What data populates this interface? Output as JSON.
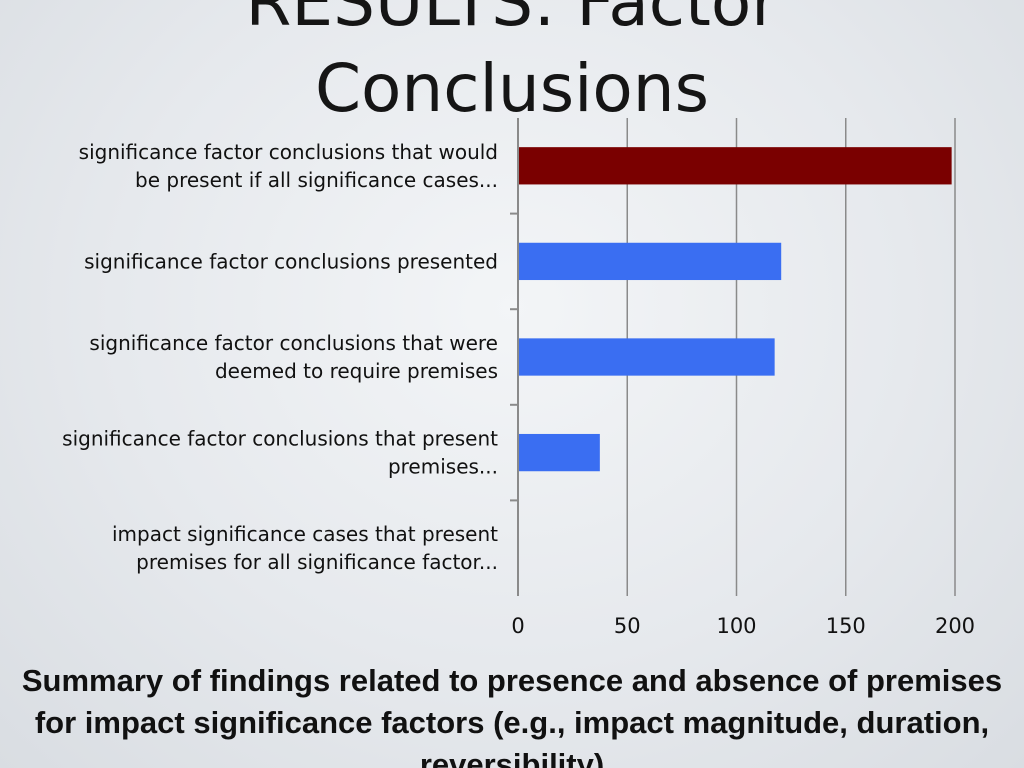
{
  "title_lines": [
    "RESULTS: Factor",
    "Conclusions"
  ],
  "caption": "Summary of findings related to presence and absence of premises for impact significance factors (e.g., impact magnitude, duration, reversibility)",
  "colors": {
    "highlight_bar": "#7a0000",
    "bar": "#3a6ef2",
    "grid": "#8a8a8a"
  },
  "chart_data": {
    "type": "bar",
    "orientation": "horizontal",
    "categories": [
      "significance factor conclusions that would be present if all significance cases...",
      "significance factor conclusions presented",
      "significance factor conclusions that were deemed to require premises",
      "significance factor conclusions that present premises...",
      "impact significance cases that present premises for all significance factor..."
    ],
    "category_label_lines": [
      [
        "significance factor conclusions that would",
        "be present if all significance cases..."
      ],
      [
        "significance factor conclusions presented"
      ],
      [
        "significance factor conclusions that were",
        "deemed to require premises"
      ],
      [
        "significance factor conclusions that present",
        "premises..."
      ],
      [
        "impact significance cases that present",
        "premises for all significance factor..."
      ]
    ],
    "values": [
      198,
      120,
      117,
      37,
      0
    ],
    "highlight_index": 0,
    "xlim": [
      0,
      200
    ],
    "xticks": [
      "0",
      "50",
      "100",
      "150",
      "200"
    ],
    "grid": true,
    "legend": false,
    "xlabel": "",
    "ylabel": ""
  }
}
